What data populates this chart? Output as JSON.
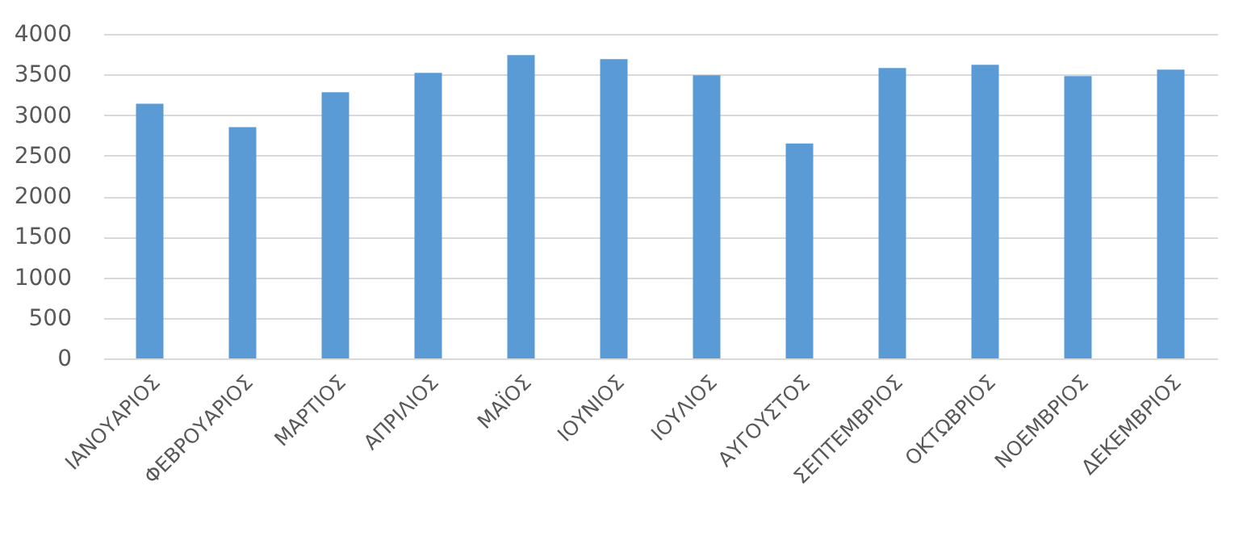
{
  "chart_data": {
    "type": "bar",
    "categories": [
      "ΙΑΝΟΥΑΡΙΟΣ",
      "ΦΕΒΡΟΥΑΡΙΟΣ",
      "ΜΑΡΤΙΟΣ",
      "ΑΠΡΙΛΙΟΣ",
      "ΜΑΪΟΣ",
      "ΙΟΥΝΙΟΣ",
      "ΙΟΥΛΙΟΣ",
      "ΑΥΓΟΥΣΤΟΣ",
      "ΣΕΠΤΕΜΒΡΙΟΣ",
      "ΟΚΤΩΒΡΙΟΣ",
      "ΝΟΕΜΒΡΙΟΣ",
      "ΔΕΚΕΜΒΡΙΟΣ"
    ],
    "values": [
      3140,
      2850,
      3280,
      3520,
      3740,
      3690,
      3490,
      2650,
      3580,
      3620,
      3480,
      3560
    ],
    "color": "#5b9bd5",
    "ylim": [
      0,
      4000
    ],
    "yticks": [
      0,
      500,
      1000,
      1500,
      2000,
      2500,
      3000,
      3500,
      4000
    ],
    "grid": "y"
  }
}
